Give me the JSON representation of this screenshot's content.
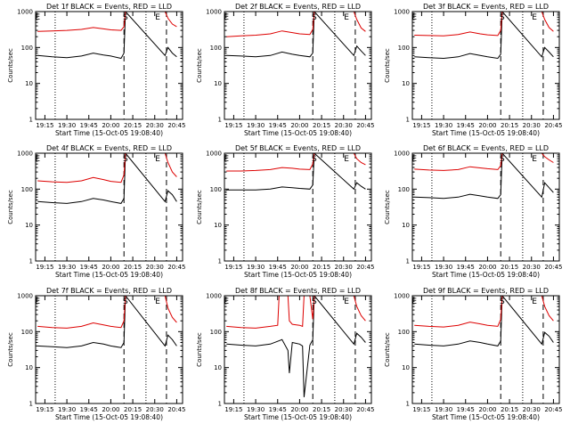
{
  "colors": {
    "events": "#000000",
    "lld": "#dd0000",
    "axes": "#000000",
    "background": "#ffffff"
  },
  "common": {
    "ylabel": "Counts/sec",
    "xlabel": "Start Time (15-Oct-05 19:08:40)",
    "x_ticks": [
      "19:15",
      "19:30",
      "19:45",
      "20:00",
      "20:15",
      "20:30",
      "20:45"
    ],
    "y_ticks": [
      "1",
      "10",
      "100",
      "1000"
    ],
    "ylim": [
      1,
      1000
    ],
    "y_scale": "log",
    "xlim": [
      "19:08:40",
      "20:49:00"
    ],
    "dotted_lines": [
      "19:22",
      "20:24"
    ],
    "dashed_lines": [
      "20:09",
      "20:38"
    ],
    "markers": [
      {
        "time": "19:10",
        "label": "E"
      },
      {
        "time": "20:10",
        "label": "S"
      },
      {
        "time": "20:32",
        "label": "E"
      }
    ]
  },
  "chart_data": [
    {
      "type": "line",
      "title": "Det 1f BLACK = Events, RED = LLD",
      "series": [
        {
          "name": "Events",
          "color": "#000000",
          "x": [
            "19:10",
            "19:20",
            "19:30",
            "19:40",
            "19:48",
            "19:55",
            "20:00",
            "20:07",
            "20:09",
            "20:10",
            "20:37",
            "20:39",
            "20:42",
            "20:45"
          ],
          "values": [
            60,
            55,
            52,
            58,
            70,
            62,
            58,
            50,
            70,
            1000,
            60,
            100,
            70,
            55
          ]
        },
        {
          "name": "LLD",
          "color": "#dd0000",
          "x": [
            "19:10",
            "19:20",
            "19:30",
            "19:40",
            "19:48",
            "19:55",
            "20:00",
            "20:07",
            "20:09",
            "20:10",
            "20:37",
            "20:39",
            "20:42",
            "20:45"
          ],
          "values": [
            280,
            290,
            300,
            320,
            360,
            330,
            310,
            300,
            380,
            1000,
            1000,
            650,
            450,
            380
          ]
        }
      ]
    },
    {
      "type": "line",
      "title": "Det 2f BLACK = Events, RED = LLD",
      "series": [
        {
          "name": "Events",
          "color": "#000000",
          "x": [
            "19:10",
            "19:20",
            "19:30",
            "19:40",
            "19:48",
            "19:55",
            "20:00",
            "20:07",
            "20:09",
            "20:10",
            "20:37",
            "20:39",
            "20:42",
            "20:45"
          ],
          "values": [
            60,
            58,
            55,
            60,
            75,
            65,
            60,
            55,
            70,
            1000,
            60,
            110,
            80,
            60
          ]
        },
        {
          "name": "LLD",
          "color": "#dd0000",
          "x": [
            "19:10",
            "19:20",
            "19:30",
            "19:40",
            "19:48",
            "19:55",
            "20:00",
            "20:07",
            "20:09",
            "20:10",
            "20:37",
            "20:39",
            "20:42",
            "20:45"
          ],
          "values": [
            200,
            210,
            220,
            240,
            290,
            260,
            240,
            230,
            320,
            1000,
            1000,
            600,
            350,
            280
          ]
        }
      ]
    },
    {
      "type": "line",
      "title": "Det 3f BLACK = Events, RED = LLD",
      "series": [
        {
          "name": "Events",
          "color": "#000000",
          "x": [
            "19:10",
            "19:20",
            "19:30",
            "19:40",
            "19:48",
            "19:55",
            "20:00",
            "20:07",
            "20:09",
            "20:10",
            "20:37",
            "20:39",
            "20:42",
            "20:45"
          ],
          "values": [
            55,
            52,
            50,
            55,
            68,
            60,
            55,
            50,
            65,
            1000,
            55,
            100,
            75,
            55
          ]
        },
        {
          "name": "LLD",
          "color": "#dd0000",
          "x": [
            "19:10",
            "19:20",
            "19:30",
            "19:40",
            "19:48",
            "19:55",
            "20:00",
            "20:07",
            "20:09",
            "20:10",
            "20:37",
            "20:39",
            "20:42",
            "20:45"
          ],
          "values": [
            220,
            215,
            210,
            230,
            270,
            240,
            225,
            215,
            300,
            1000,
            1000,
            600,
            360,
            280
          ]
        }
      ]
    },
    {
      "type": "line",
      "title": "Det 4f BLACK = Events, RED = LLD",
      "series": [
        {
          "name": "Events",
          "color": "#000000",
          "x": [
            "19:10",
            "19:20",
            "19:30",
            "19:40",
            "19:48",
            "19:55",
            "20:00",
            "20:07",
            "20:09",
            "20:10",
            "20:37",
            "20:39",
            "20:42",
            "20:45"
          ],
          "values": [
            45,
            42,
            40,
            45,
            55,
            50,
            45,
            40,
            55,
            1000,
            45,
            90,
            70,
            45
          ]
        },
        {
          "name": "LLD",
          "color": "#dd0000",
          "x": [
            "19:10",
            "19:20",
            "19:30",
            "19:40",
            "19:48",
            "19:55",
            "20:00",
            "20:07",
            "20:09",
            "20:10",
            "20:37",
            "20:39",
            "20:42",
            "20:45"
          ],
          "values": [
            170,
            160,
            155,
            170,
            210,
            185,
            165,
            155,
            250,
            1000,
            1000,
            550,
            300,
            220
          ]
        }
      ]
    },
    {
      "type": "line",
      "title": "Det 5f BLACK = Events, RED = LLD",
      "series": [
        {
          "name": "Events",
          "color": "#000000",
          "x": [
            "19:10",
            "19:20",
            "19:30",
            "19:40",
            "19:48",
            "19:55",
            "20:00",
            "20:07",
            "20:09",
            "20:10",
            "20:37",
            "20:39",
            "20:42",
            "20:45"
          ],
          "values": [
            95,
            95,
            95,
            100,
            115,
            110,
            105,
            100,
            130,
            1000,
            100,
            150,
            120,
            100
          ]
        },
        {
          "name": "LLD",
          "color": "#dd0000",
          "x": [
            "19:10",
            "19:20",
            "19:30",
            "19:40",
            "19:48",
            "19:55",
            "20:00",
            "20:07",
            "20:09",
            "20:10",
            "20:37",
            "20:39",
            "20:42",
            "20:45"
          ],
          "values": [
            320,
            320,
            330,
            350,
            400,
            380,
            360,
            350,
            500,
            1000,
            1000,
            700,
            550,
            480
          ]
        }
      ]
    },
    {
      "type": "line",
      "title": "Det 6f BLACK = Events, RED = LLD",
      "series": [
        {
          "name": "Events",
          "color": "#000000",
          "x": [
            "19:10",
            "19:20",
            "19:30",
            "19:40",
            "19:48",
            "19:55",
            "20:00",
            "20:07",
            "20:09",
            "20:10",
            "20:37",
            "20:39",
            "20:42",
            "20:45"
          ],
          "values": [
            60,
            58,
            55,
            60,
            72,
            65,
            60,
            55,
            70,
            1000,
            60,
            150,
            110,
            80
          ]
        },
        {
          "name": "LLD",
          "color": "#dd0000",
          "x": [
            "19:10",
            "19:20",
            "19:30",
            "19:40",
            "19:48",
            "19:55",
            "20:00",
            "20:07",
            "20:09",
            "20:10",
            "20:37",
            "20:39",
            "20:42",
            "20:45"
          ],
          "values": [
            360,
            340,
            330,
            350,
            420,
            390,
            370,
            350,
            450,
            1000,
            1000,
            800,
            650,
            550
          ]
        }
      ]
    },
    {
      "type": "line",
      "title": "Det 7f BLACK = Events, RED = LLD",
      "series": [
        {
          "name": "Events",
          "color": "#000000",
          "x": [
            "19:10",
            "19:20",
            "19:30",
            "19:40",
            "19:48",
            "19:55",
            "20:00",
            "20:07",
            "20:09",
            "20:10",
            "20:37",
            "20:39",
            "20:42",
            "20:45"
          ],
          "values": [
            40,
            38,
            36,
            40,
            50,
            45,
            40,
            36,
            50,
            1000,
            40,
            80,
            60,
            40
          ]
        },
        {
          "name": "LLD",
          "color": "#dd0000",
          "x": [
            "19:10",
            "19:20",
            "19:30",
            "19:40",
            "19:48",
            "19:55",
            "20:00",
            "20:07",
            "20:09",
            "20:10",
            "20:37",
            "20:39",
            "20:42",
            "20:45"
          ],
          "values": [
            140,
            130,
            125,
            140,
            175,
            155,
            140,
            130,
            200,
            1000,
            1000,
            450,
            250,
            180
          ]
        }
      ]
    },
    {
      "type": "line",
      "title": "Det 8f BLACK = Events, RED = LLD",
      "series": [
        {
          "name": "Events",
          "color": "#000000",
          "x": [
            "19:10",
            "19:20",
            "19:30",
            "19:40",
            "19:48",
            "19:52",
            "19:53",
            "19:55",
            "20:00",
            "20:02",
            "20:03",
            "20:07",
            "20:09",
            "20:10",
            "20:37",
            "20:39",
            "20:42",
            "20:45"
          ],
          "values": [
            45,
            42,
            40,
            45,
            60,
            30,
            7,
            50,
            45,
            40,
            1.5,
            42,
            60,
            1000,
            45,
            90,
            70,
            50
          ]
        },
        {
          "name": "LLD",
          "color": "#dd0000",
          "x": [
            "19:10",
            "19:20",
            "19:30",
            "19:40",
            "19:45",
            "19:46",
            "19:52",
            "19:53",
            "19:55",
            "20:00",
            "20:02",
            "20:03",
            "20:07",
            "20:09",
            "20:10",
            "20:37",
            "20:39",
            "20:42",
            "20:45"
          ],
          "values": [
            140,
            130,
            125,
            140,
            150,
            1000,
            1000,
            200,
            160,
            150,
            140,
            1000,
            1000,
            220,
            1000,
            1000,
            500,
            280,
            200
          ]
        }
      ]
    },
    {
      "type": "line",
      "title": "Det 9f BLACK = Events, RED = LLD",
      "series": [
        {
          "name": "Events",
          "color": "#000000",
          "x": [
            "19:10",
            "19:20",
            "19:30",
            "19:40",
            "19:48",
            "19:55",
            "20:00",
            "20:07",
            "20:09",
            "20:10",
            "20:37",
            "20:39",
            "20:42",
            "20:45"
          ],
          "values": [
            45,
            42,
            40,
            45,
            55,
            50,
            45,
            40,
            55,
            1000,
            45,
            95,
            75,
            50
          ]
        },
        {
          "name": "LLD",
          "color": "#dd0000",
          "x": [
            "19:10",
            "19:20",
            "19:30",
            "19:40",
            "19:48",
            "19:55",
            "20:00",
            "20:07",
            "20:09",
            "20:10",
            "20:37",
            "20:39",
            "20:42",
            "20:45"
          ],
          "values": [
            150,
            140,
            135,
            150,
            185,
            165,
            150,
            140,
            220,
            1000,
            1000,
            500,
            280,
            200
          ]
        }
      ]
    }
  ]
}
